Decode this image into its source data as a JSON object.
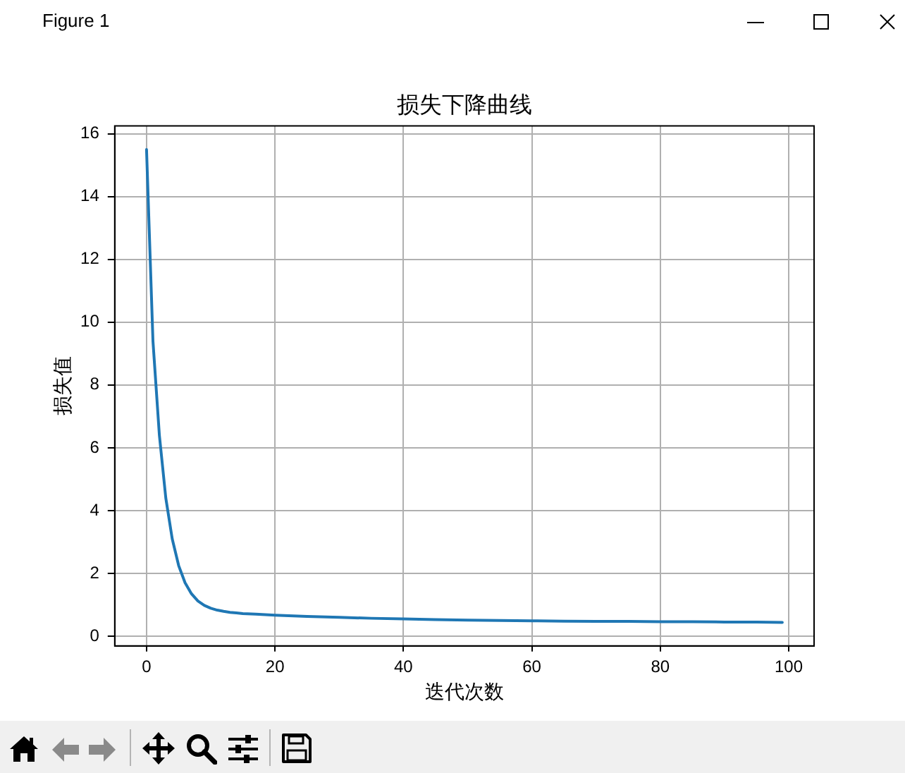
{
  "chart_data": {
    "type": "line",
    "title": "损失下降曲线",
    "xlabel": "迭代次数",
    "ylabel": "损失值",
    "annotations": [
      "Figure 1"
    ],
    "x": [
      0,
      1,
      2,
      3,
      4,
      5,
      6,
      7,
      8,
      9,
      10,
      11,
      12,
      13,
      14,
      15,
      17,
      20,
      25,
      30,
      35,
      40,
      45,
      50,
      55,
      60,
      65,
      70,
      75,
      80,
      85,
      90,
      95,
      99
    ],
    "series": [
      {
        "color": "#1f77b4",
        "values": [
          15.5,
          9.4,
          6.4,
          4.4,
          3.1,
          2.25,
          1.7,
          1.35,
          1.12,
          0.98,
          0.89,
          0.83,
          0.79,
          0.76,
          0.74,
          0.72,
          0.7,
          0.67,
          0.63,
          0.6,
          0.57,
          0.55,
          0.53,
          0.51,
          0.5,
          0.49,
          0.48,
          0.47,
          0.47,
          0.46,
          0.46,
          0.45,
          0.45,
          0.44
        ]
      }
    ],
    "xlim": [
      -4.95,
      103.95
    ],
    "ylim": [
      -0.31,
      16.25
    ],
    "xticks": [
      0,
      20,
      40,
      60,
      80,
      100
    ],
    "yticks": [
      0,
      2,
      4,
      6,
      8,
      10,
      12,
      14,
      16
    ],
    "grid": true,
    "legend": false,
    "marker": "none",
    "line_style": "solid"
  }
}
